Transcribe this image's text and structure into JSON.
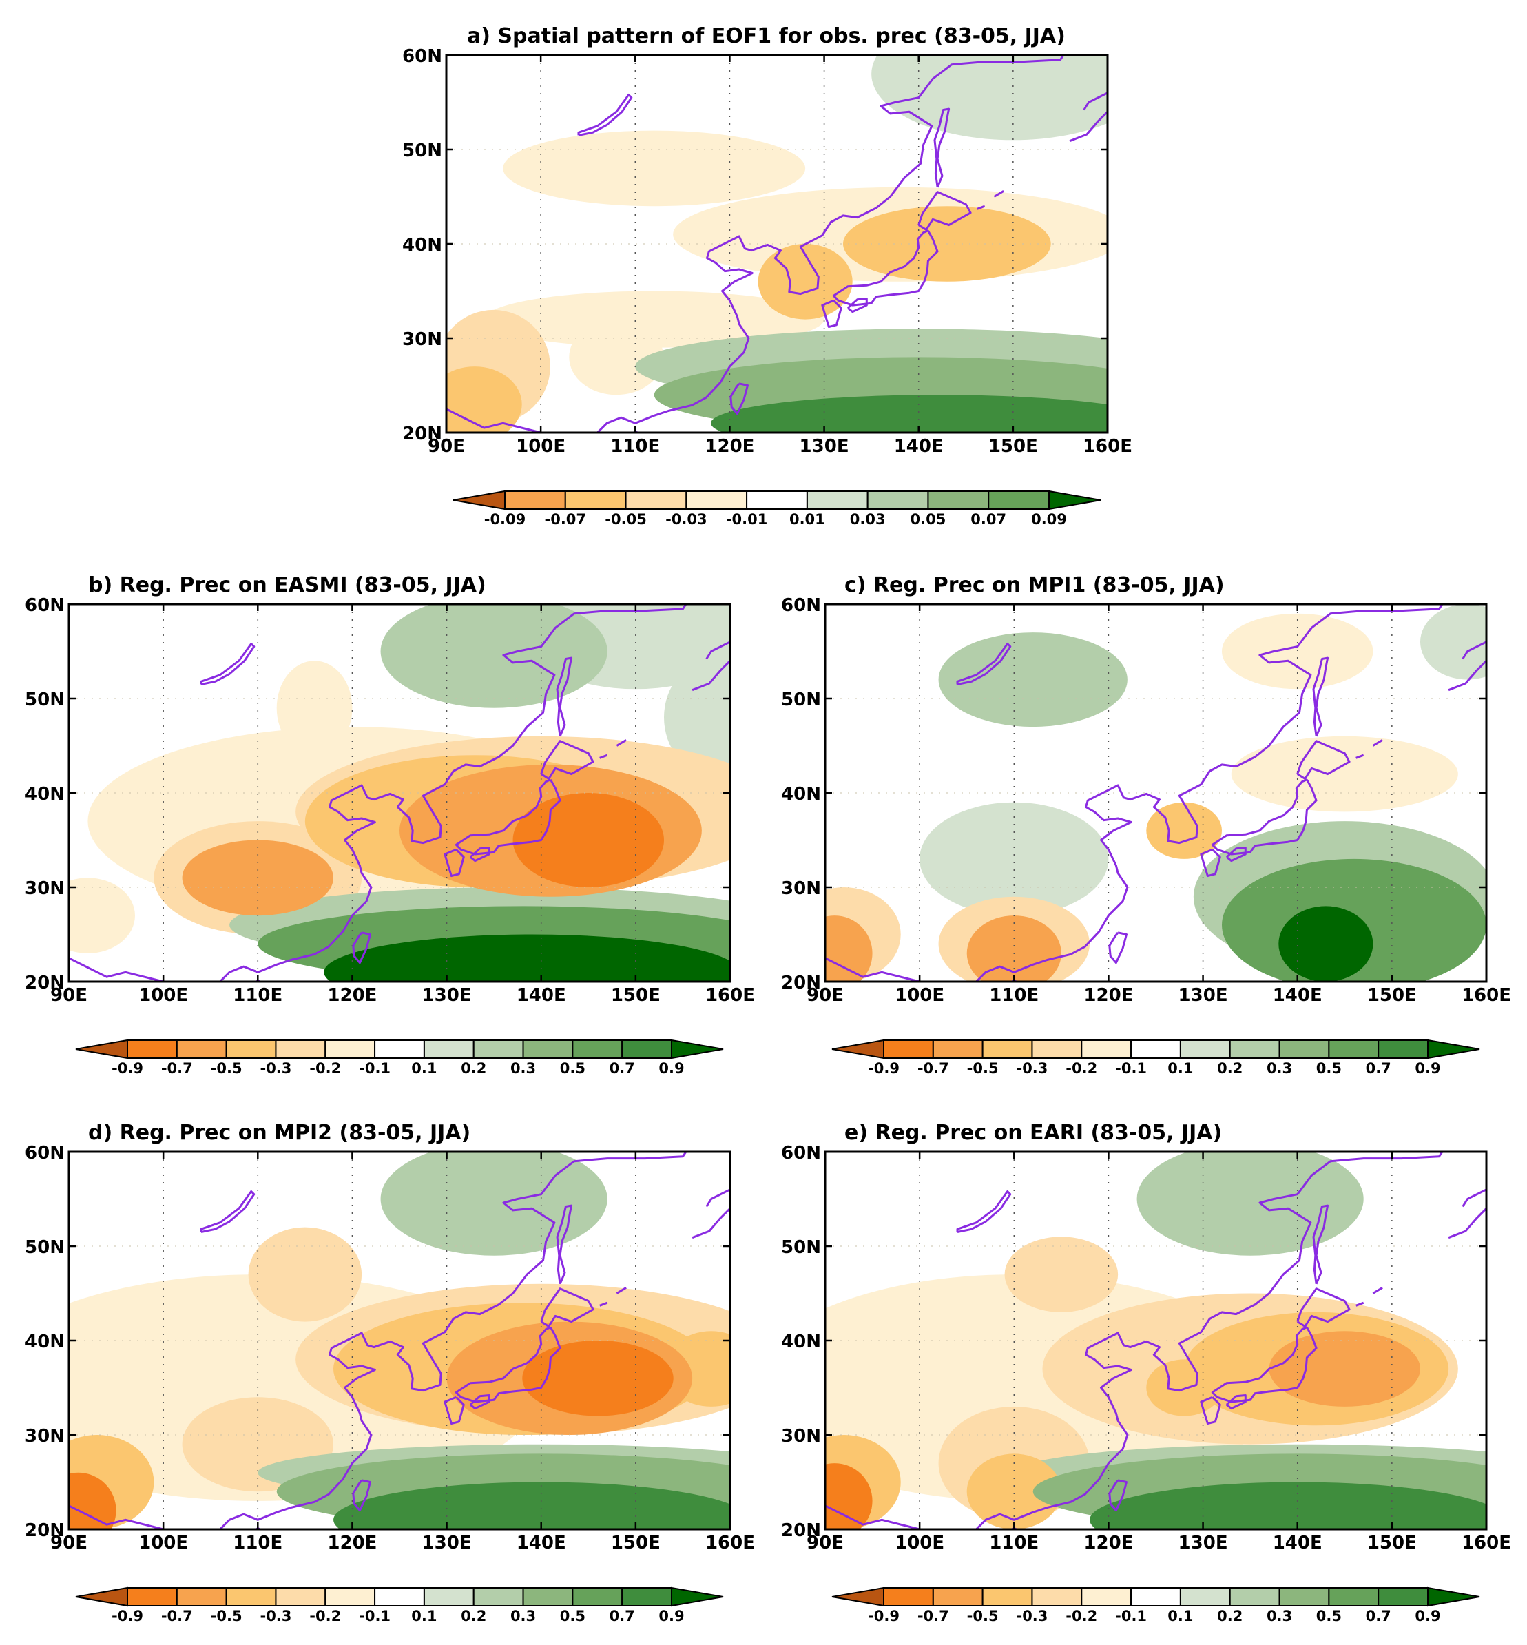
{
  "colors": {
    "neg": [
      "#b95511",
      "#f57f1c",
      "#f7a34e",
      "#fbc66f",
      "#fddcaa",
      "#fef0d2"
    ],
    "neutral": "#ffffff",
    "pos": [
      "#d4e2cf",
      "#b3ceaa",
      "#8cb67d",
      "#66a25a",
      "#3f8d3d",
      "#006600"
    ],
    "coast": "#8a2be2"
  },
  "axes": {
    "x_ticks": [
      "90E",
      "100E",
      "110E",
      "120E",
      "130E",
      "140E",
      "150E",
      "160E"
    ],
    "y_ticks": [
      "60N",
      "50N",
      "40N",
      "30N",
      "20N"
    ]
  },
  "colorbars": {
    "eof": [
      "-0.09",
      "-0.07",
      "-0.05",
      "-0.03",
      "-0.01",
      "0.01",
      "0.03",
      "0.05",
      "0.07",
      "0.09"
    ],
    "reg": [
      "-0.9",
      "-0.7",
      "-0.5",
      "-0.3",
      "-0.2",
      "-0.1",
      "0.1",
      "0.2",
      "0.3",
      "0.5",
      "0.7",
      "0.9"
    ]
  },
  "panels": [
    {
      "id": "a",
      "title": "a) Spatial pattern of EOF1 for obs. prec (83-05, JJA)",
      "colorbar": "eof",
      "blobs": [
        [
          93,
          23,
          5,
          4,
          -3
        ],
        [
          95,
          27,
          6,
          6,
          -2
        ],
        [
          108,
          28,
          5,
          4,
          -1
        ],
        [
          143,
          40,
          11,
          4,
          -3
        ],
        [
          128,
          36,
          5,
          4,
          -3
        ],
        [
          138,
          41,
          24,
          5,
          -1
        ],
        [
          112,
          48,
          16,
          4,
          -1
        ],
        [
          112,
          32,
          18,
          3,
          -1
        ],
        [
          142,
          21,
          24,
          3,
          5
        ],
        [
          140,
          24,
          28,
          4,
          3
        ],
        [
          140,
          27,
          30,
          4,
          2
        ],
        [
          150,
          58,
          15,
          7,
          1
        ]
      ]
    },
    {
      "id": "b",
      "title": "b) Reg. Prec on EASMI (83-05, JJA)",
      "colorbar": "reg",
      "blobs": [
        [
          145,
          35,
          8,
          5,
          -5
        ],
        [
          141,
          36,
          16,
          7,
          -4
        ],
        [
          133,
          37,
          18,
          7,
          -3
        ],
        [
          140,
          38,
          26,
          8,
          -2
        ],
        [
          110,
          31,
          8,
          4,
          -4
        ],
        [
          110,
          31,
          11,
          6,
          -2
        ],
        [
          92,
          27,
          5,
          4,
          -1
        ],
        [
          116,
          49,
          4,
          5,
          -1
        ],
        [
          120,
          37,
          28,
          10,
          -1
        ],
        [
          139,
          21,
          22,
          4,
          6
        ],
        [
          138,
          24,
          28,
          4,
          4
        ],
        [
          137,
          26,
          30,
          4,
          2
        ],
        [
          135,
          55,
          12,
          6,
          2
        ],
        [
          150,
          57,
          12,
          6,
          1
        ],
        [
          158,
          48,
          5,
          6,
          1
        ]
      ]
    },
    {
      "id": "c",
      "title": "c) Reg. Prec on MPI1 (83-05, JJA)",
      "colorbar": "reg",
      "blobs": [
        [
          91,
          23,
          4,
          4,
          -4
        ],
        [
          92,
          25,
          6,
          5,
          -2
        ],
        [
          110,
          23,
          5,
          4,
          -4
        ],
        [
          110,
          24,
          8,
          5,
          -2
        ],
        [
          128,
          36,
          4,
          3,
          -3
        ],
        [
          145,
          42,
          12,
          4,
          -1
        ],
        [
          140,
          55,
          8,
          4,
          -1
        ],
        [
          143,
          24,
          5,
          4,
          6
        ],
        [
          146,
          26,
          14,
          7,
          4
        ],
        [
          145,
          29,
          16,
          8,
          2
        ],
        [
          112,
          52,
          10,
          5,
          2
        ],
        [
          110,
          33,
          10,
          6,
          1
        ],
        [
          158,
          56,
          5,
          4,
          1
        ]
      ]
    },
    {
      "id": "d",
      "title": "d) Reg. Prec on MPI2 (83-05, JJA)",
      "colorbar": "reg",
      "blobs": [
        [
          146,
          36,
          8,
          4,
          -5
        ],
        [
          143,
          36,
          13,
          6,
          -4
        ],
        [
          138,
          37,
          20,
          7,
          -3
        ],
        [
          140,
          38,
          26,
          8,
          -2
        ],
        [
          158,
          37,
          5,
          4,
          -3
        ],
        [
          91,
          22,
          4,
          4,
          -5
        ],
        [
          93,
          25,
          6,
          5,
          -3
        ],
        [
          110,
          29,
          8,
          5,
          -2
        ],
        [
          115,
          47,
          6,
          5,
          -2
        ],
        [
          110,
          35,
          30,
          12,
          -1
        ],
        [
          140,
          21,
          22,
          4,
          5
        ],
        [
          140,
          24,
          28,
          4,
          3
        ],
        [
          140,
          26,
          30,
          3,
          2
        ],
        [
          135,
          55,
          12,
          6,
          2
        ]
      ]
    },
    {
      "id": "e",
      "title": "e) Reg. Prec on EARI (83-05, JJA)",
      "colorbar": "reg",
      "blobs": [
        [
          145,
          37,
          8,
          4,
          -4
        ],
        [
          142,
          37,
          14,
          6,
          -3
        ],
        [
          135,
          37,
          22,
          8,
          -2
        ],
        [
          128,
          35,
          4,
          3,
          -3
        ],
        [
          91,
          23,
          4,
          4,
          -5
        ],
        [
          92,
          25,
          6,
          5,
          -3
        ],
        [
          110,
          24,
          5,
          4,
          -3
        ],
        [
          110,
          27,
          8,
          6,
          -2
        ],
        [
          115,
          47,
          6,
          4,
          -2
        ],
        [
          110,
          35,
          28,
          12,
          -1
        ],
        [
          140,
          21,
          22,
          4,
          5
        ],
        [
          140,
          24,
          28,
          4,
          3
        ],
        [
          140,
          26,
          30,
          3,
          2
        ],
        [
          135,
          55,
          12,
          6,
          2
        ]
      ]
    }
  ]
}
